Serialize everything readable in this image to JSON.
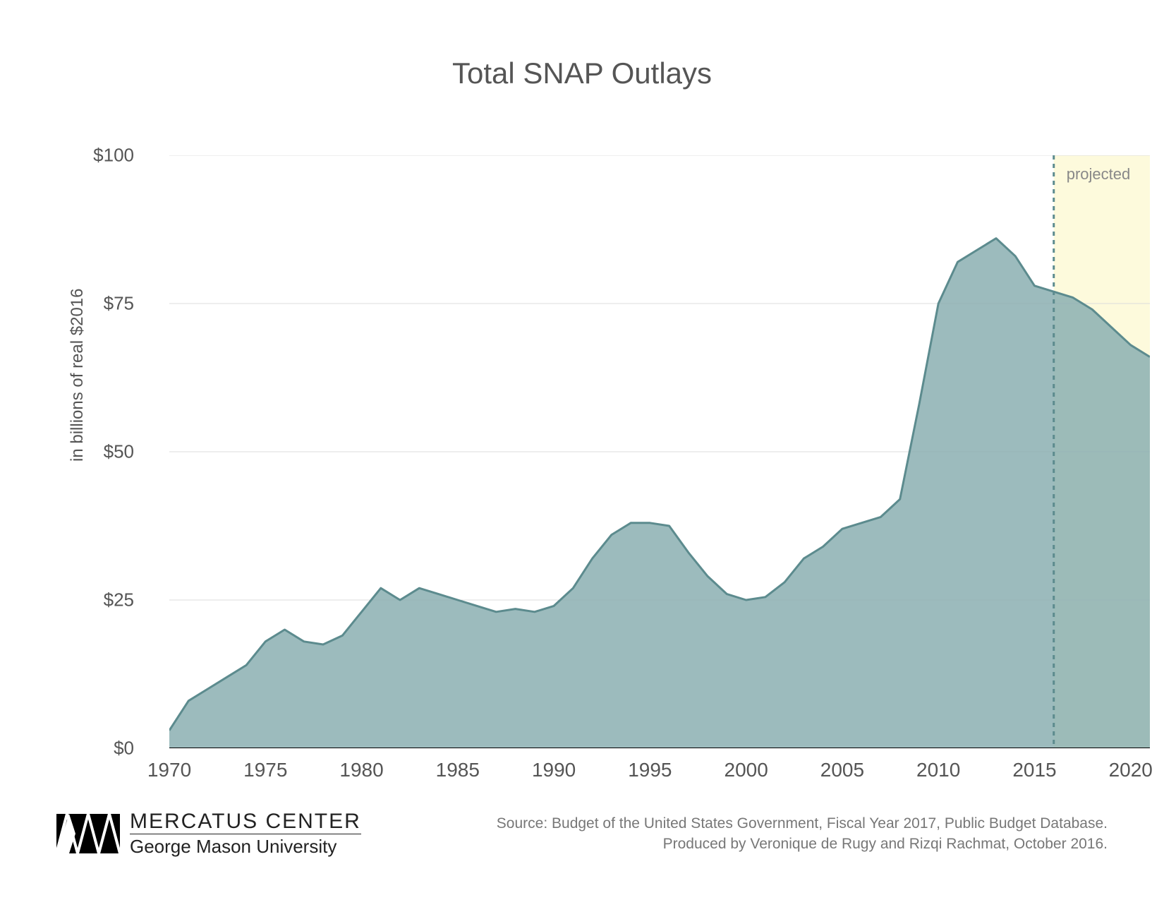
{
  "chart": {
    "type": "area",
    "title": "Total SNAP Outlays",
    "title_fontsize": 42,
    "title_color": "#555555",
    "ylabel": "in billions of real $2016",
    "ylabel_fontsize": 24,
    "xlim": [
      1970,
      2021
    ],
    "ylim": [
      0,
      100
    ],
    "ytick_step": 25,
    "ytick_prefix": "$",
    "yticks": [
      0,
      25,
      50,
      75,
      100
    ],
    "xticks": [
      1970,
      1975,
      1980,
      1985,
      1990,
      1995,
      2000,
      2005,
      2010,
      2015,
      2020
    ],
    "background_color": "#ffffff",
    "grid_color": "#dcdcdc",
    "grid_width": 1,
    "area_fill_color": "#8bafb2",
    "area_fill_opacity": 0.85,
    "line_color": "#5c8b8e",
    "line_width": 3,
    "baseline_color": "#000000",
    "baseline_width": 2,
    "projected_region": {
      "start_year": 2016,
      "end_year": 2021,
      "fill_color": "#fdf9d8",
      "fill_opacity": 0.9,
      "divider_color": "#5c8b8e",
      "divider_width": 3,
      "divider_dash": "6,6",
      "label": "projected",
      "label_color": "#888888",
      "label_fontsize": 22
    },
    "axis_tick_color": "#999999",
    "axis_tick_fontsize": 26,
    "years": [
      1970,
      1971,
      1972,
      1973,
      1974,
      1975,
      1976,
      1977,
      1978,
      1979,
      1980,
      1981,
      1982,
      1983,
      1984,
      1985,
      1986,
      1987,
      1988,
      1989,
      1990,
      1991,
      1992,
      1993,
      1994,
      1995,
      1996,
      1997,
      1998,
      1999,
      2000,
      2001,
      2002,
      2003,
      2004,
      2005,
      2006,
      2007,
      2008,
      2009,
      2010,
      2011,
      2012,
      2013,
      2014,
      2015,
      2016,
      2017,
      2018,
      2019,
      2020,
      2021
    ],
    "values": [
      3,
      8,
      10,
      12,
      14,
      18,
      20,
      18,
      17.5,
      19,
      23,
      27,
      25,
      27,
      26,
      25,
      24,
      23,
      23.5,
      23,
      24,
      27,
      32,
      36,
      38,
      38,
      37.5,
      33,
      29,
      26,
      25,
      25.5,
      28,
      32,
      34,
      37,
      38,
      39,
      42,
      58,
      75,
      82,
      84,
      86,
      83,
      78,
      77,
      76,
      74,
      71,
      68,
      66
    ]
  },
  "footer": {
    "logo": {
      "main_text": "MERCATUS CENTER",
      "sub_text": "George Mason University",
      "icon_color": "#000000"
    },
    "source_line1": "Source: Budget of the United States Government, Fiscal Year 2017, Public Budget Database.",
    "source_line2": "Produced by Veronique de Rugy and Rizqi Rachmat, October 2016.",
    "source_color": "#777777",
    "source_fontsize": 21
  }
}
